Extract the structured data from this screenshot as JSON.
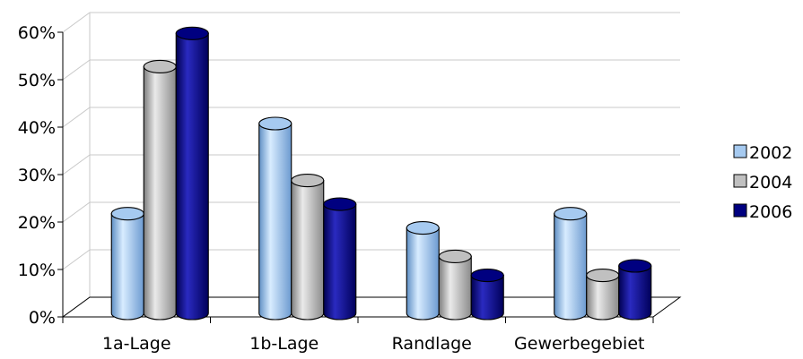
{
  "chart_data": {
    "type": "bar",
    "categories": [
      "1a-Lage",
      "1b-Lage",
      "Randlage",
      "Gewerbegebiet"
    ],
    "series": [
      {
        "name": "2002",
        "values": [
          21,
          40,
          18,
          21
        ],
        "color": "#a6caf0"
      },
      {
        "name": "2004",
        "values": [
          52,
          28,
          12,
          8
        ],
        "color": "#c0c0c0"
      },
      {
        "name": "2006",
        "values": [
          59,
          23,
          8,
          10
        ],
        "color": "#000080"
      }
    ],
    "yticks": [
      "0%",
      "10%",
      "20%",
      "30%",
      "40%",
      "50%",
      "60%"
    ],
    "ylim": [
      0,
      60
    ],
    "grid": true,
    "legend_position": "right",
    "title": "",
    "xlabel": "",
    "ylabel": ""
  }
}
